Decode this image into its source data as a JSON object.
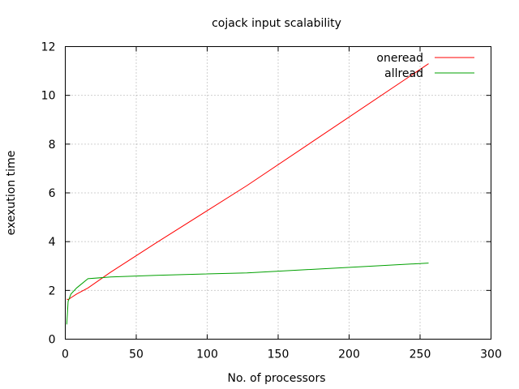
{
  "chart_data": {
    "type": "line",
    "title": "cojack input scalability",
    "xlabel": "No. of processors",
    "ylabel": "exexution time",
    "xlim": [
      0,
      300
    ],
    "ylim": [
      0,
      12
    ],
    "xticks": [
      0,
      50,
      100,
      150,
      200,
      250,
      300
    ],
    "yticks": [
      0,
      2,
      4,
      6,
      8,
      10,
      12
    ],
    "xtick_labels": [
      "0",
      "50",
      "100",
      "150",
      "200",
      "250",
      "300"
    ],
    "ytick_labels": [
      "0",
      "2",
      "4",
      "6",
      "8",
      "10",
      "12"
    ],
    "grid": true,
    "legend_position": "top-right",
    "series": [
      {
        "name": "oneread",
        "color": "#ff0000",
        "x": [
          1,
          2,
          4,
          8,
          16,
          32,
          64,
          128,
          256
        ],
        "y": [
          1.65,
          1.62,
          1.7,
          1.85,
          2.1,
          2.75,
          3.95,
          6.3,
          11.3
        ]
      },
      {
        "name": "allread",
        "color": "#00a000",
        "x": [
          1,
          2,
          4,
          8,
          16,
          32,
          64,
          128,
          256
        ],
        "y": [
          0.6,
          1.55,
          1.85,
          2.1,
          2.48,
          2.55,
          2.62,
          2.72,
          3.12
        ]
      }
    ]
  }
}
